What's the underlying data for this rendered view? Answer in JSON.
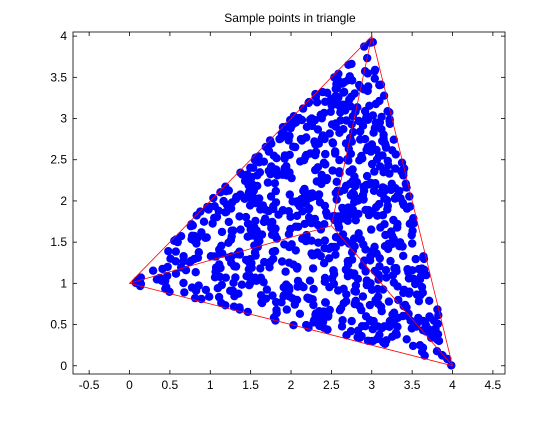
{
  "chart_data": {
    "type": "scatter",
    "title": "Sample points in triangle",
    "xlabel": "",
    "ylabel": "",
    "xlim": [
      -0.7,
      4.65
    ],
    "ylim": [
      -0.1,
      4.05
    ],
    "xticks": [
      -0.5,
      0,
      0.5,
      1,
      1.5,
      2,
      2.5,
      3,
      3.5,
      4,
      4.5
    ],
    "yticks": [
      0,
      0.5,
      1,
      1.5,
      2,
      2.5,
      3,
      3.5,
      4
    ],
    "xtick_labels": [
      "-0.5",
      "0",
      "0.5",
      "1",
      "1.5",
      "2",
      "2.5",
      "3",
      "3.5",
      "4",
      "4.5"
    ],
    "ytick_labels": [
      "0",
      "0.5",
      "1",
      "1.5",
      "2",
      "2.5",
      "3",
      "3.5",
      "4"
    ],
    "grid": false,
    "triangle": {
      "vertices": [
        [
          0,
          1
        ],
        [
          3,
          4
        ],
        [
          4,
          0
        ]
      ],
      "interior_point": [
        2.5,
        1.7
      ],
      "color": "#ff0000"
    },
    "points": {
      "count": 900,
      "color": "#0000ff",
      "marker": "filled-circle",
      "distribution": "random uniform inside triangle"
    }
  }
}
